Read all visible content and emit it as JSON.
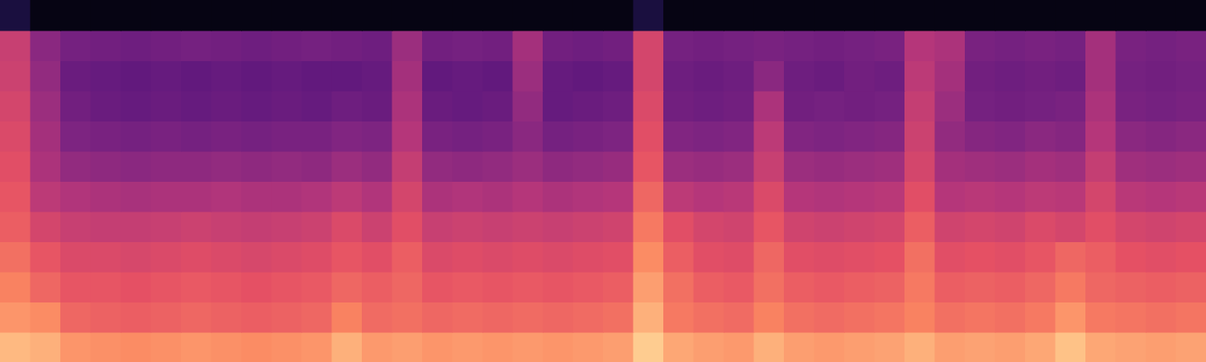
{
  "chart_data": {
    "type": "heatmap",
    "tick_labels": false,
    "zlim": [
      0,
      100
    ],
    "cells": [
      [
        86,
        84,
        78,
        77,
        76,
        77,
        78,
        77,
        76,
        77,
        78,
        84,
        79,
        80,
        78,
        79,
        78,
        79,
        78,
        79,
        80,
        90,
        82,
        80,
        79,
        84,
        80,
        79,
        80,
        81,
        84,
        80,
        81,
        80,
        82,
        88,
        82,
        81,
        80,
        81
      ],
      [
        78,
        76,
        68,
        67,
        66,
        67,
        68,
        67,
        66,
        67,
        68,
        74,
        69,
        70,
        68,
        69,
        68,
        69,
        68,
        69,
        70,
        84,
        72,
        70,
        69,
        74,
        70,
        69,
        70,
        71,
        74,
        70,
        71,
        70,
        72,
        78,
        72,
        71,
        70,
        71
      ],
      [
        74,
        68,
        64,
        64,
        63,
        64,
        65,
        64,
        63,
        64,
        65,
        68,
        66,
        68,
        64,
        65,
        64,
        65,
        64,
        65,
        66,
        80,
        70,
        66,
        65,
        70,
        66,
        65,
        66,
        67,
        72,
        66,
        67,
        66,
        68,
        72,
        68,
        67,
        66,
        67
      ],
      [
        70,
        64,
        60,
        60,
        59,
        60,
        61,
        60,
        59,
        60,
        61,
        64,
        62,
        66,
        60,
        61,
        60,
        61,
        60,
        61,
        62,
        76,
        66,
        62,
        61,
        68,
        62,
        61,
        62,
        63,
        70,
        62,
        63,
        62,
        64,
        68,
        66,
        63,
        62,
        63
      ],
      [
        66,
        58,
        55,
        54,
        54,
        55,
        56,
        55,
        54,
        55,
        56,
        60,
        56,
        62,
        55,
        56,
        55,
        56,
        55,
        56,
        57,
        72,
        62,
        58,
        57,
        64,
        57,
        56,
        57,
        58,
        66,
        57,
        58,
        57,
        60,
        58,
        62,
        58,
        57,
        58
      ],
      [
        64,
        52,
        49,
        48,
        47,
        48,
        48,
        49,
        48,
        48,
        49,
        52,
        49,
        58,
        48,
        49,
        48,
        50,
        48,
        49,
        50,
        68,
        52,
        50,
        51,
        60,
        50,
        49,
        50,
        51,
        62,
        50,
        51,
        50,
        52,
        51,
        58,
        51,
        50,
        51
      ],
      [
        62,
        48,
        42,
        41,
        40,
        41,
        41,
        42,
        41,
        42,
        41,
        44,
        42,
        54,
        42,
        41,
        42,
        44,
        41,
        42,
        43,
        64,
        44,
        43,
        44,
        55,
        44,
        43,
        44,
        45,
        58,
        46,
        45,
        44,
        46,
        45,
        54,
        45,
        44,
        45
      ],
      [
        60,
        46,
        37,
        36,
        35,
        36,
        35,
        36,
        35,
        36,
        36,
        38,
        37,
        50,
        36,
        35,
        36,
        40,
        35,
        36,
        37,
        62,
        38,
        37,
        38,
        52,
        38,
        37,
        38,
        39,
        56,
        42,
        39,
        38,
        40,
        39,
        50,
        40,
        39,
        40
      ],
      [
        58,
        44,
        34,
        32,
        31,
        32,
        31,
        32,
        31,
        32,
        31,
        33,
        32,
        48,
        32,
        31,
        32,
        42,
        31,
        32,
        33,
        60,
        34,
        33,
        34,
        48,
        34,
        35,
        34,
        35,
        54,
        44,
        35,
        34,
        35,
        36,
        48,
        36,
        35,
        36
      ],
      [
        56,
        42,
        32,
        31,
        30,
        31,
        30,
        31,
        30,
        31,
        30,
        30,
        31,
        46,
        30,
        31,
        30,
        44,
        31,
        30,
        31,
        58,
        33,
        32,
        33,
        40,
        33,
        32,
        34,
        33,
        52,
        46,
        34,
        33,
        34,
        33,
        46,
        35,
        34,
        35
      ],
      [
        55,
        40,
        35,
        34,
        33,
        34,
        35,
        34,
        33,
        34,
        35,
        34,
        33,
        44,
        34,
        35,
        34,
        46,
        34,
        33,
        34,
        58,
        35,
        34,
        35,
        36,
        35,
        34,
        35,
        36,
        50,
        48,
        36,
        35,
        36,
        35,
        46,
        36,
        35,
        36
      ],
      [
        12,
        3,
        3,
        3,
        3,
        3,
        3,
        3,
        3,
        3,
        3,
        3,
        3,
        3,
        3,
        3,
        3,
        3,
        3,
        3,
        3,
        12,
        3,
        3,
        3,
        3,
        3,
        3,
        3,
        3,
        3,
        3,
        3,
        3,
        3,
        3,
        3,
        3,
        3,
        3
      ]
    ]
  }
}
